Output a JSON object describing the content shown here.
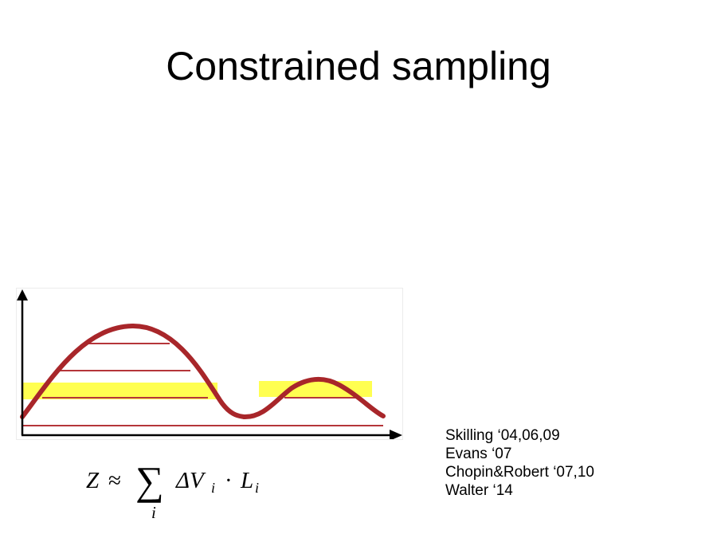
{
  "slide": {
    "title": "Constrained sampling"
  },
  "figure": {
    "curve_color": "#a8262a",
    "highlight_color": "#ffff33",
    "axis_color": "#000000",
    "level_count": 4,
    "highlighted_regions": 2
  },
  "formula": {
    "lhs": "Z",
    "approx": "≈",
    "sum": "∑",
    "index": "i",
    "term": "ΔV",
    "term_sub": "i",
    "dot": "·",
    "factor": "L",
    "factor_sub": "i"
  },
  "references": [
    "Skilling ‘04,06,09",
    "Evans ‘07",
    "Chopin&Robert ‘07,10",
    "Walter ‘14"
  ]
}
